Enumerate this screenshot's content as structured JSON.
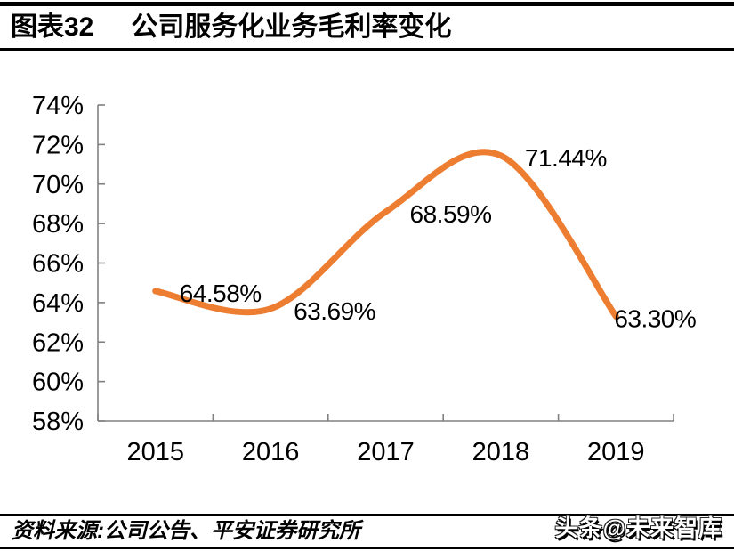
{
  "header": {
    "figure_label": "图表32",
    "title": "公司服务化业务毛利率变化"
  },
  "chart_data": {
    "type": "line",
    "title": "公司服务化业务毛利率变化",
    "categories": [
      "2015",
      "2016",
      "2017",
      "2018",
      "2019"
    ],
    "values": [
      64.58,
      63.69,
      68.59,
      71.44,
      63.3
    ],
    "data_labels": [
      "64.58%",
      "63.69%",
      "68.59%",
      "71.44%",
      "63.30%"
    ],
    "ylim": [
      58,
      74
    ],
    "ytick_step": 2,
    "ytick_labels": [
      "58%",
      "60%",
      "62%",
      "64%",
      "66%",
      "68%",
      "70%",
      "72%",
      "74%"
    ],
    "xlabel": "",
    "ylabel": "",
    "grid": false,
    "legend": "none",
    "smooth": true,
    "line_color": "#ED7D31",
    "axis_color": "#808080",
    "label_color": "#000000"
  },
  "footer": {
    "source_text": "资料来源:公司公告、平安证券研究所",
    "watermark": "头条@未来智库"
  }
}
